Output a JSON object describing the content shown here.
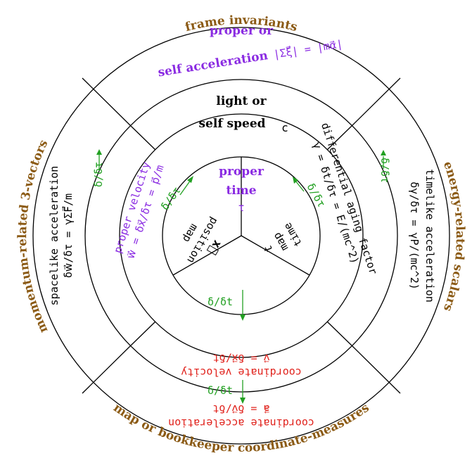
{
  "outer_labels": {
    "top": "frame invariants",
    "right": "energy-related scalars",
    "bottom": "map or bookkeeper coordinate-measures",
    "left": "momentum-related 3-vectors"
  },
  "ring3": {
    "top_line1": "proper or",
    "top_line2": "self acceleration",
    "top_formula": "|Σξ⃗| = |mα⃗|",
    "right_line1": "timelike acceleration",
    "right_line2": "δγ/δτ = γP/(mc^2)",
    "bottom_line1": "coordinate acceleration",
    "bottom_line2": "a⃗ = δv⃗/δt",
    "left_line1": "spacelike acceleration",
    "left_line2": "δw⃗/δτ = γΣF⃗/m"
  },
  "ring2": {
    "top_line1": "light or",
    "top_line2": "self speed",
    "top_c": "c",
    "right_line1": "differential aging factor",
    "right_line2": "γ = δt/δτ = E/(mc^2)",
    "bottom_line1": "coordinate velocity",
    "bottom_line2": "v⃗ = δx⃗/δt",
    "left_line1": "proper velocity",
    "left_line2": "w⃗ = δx⃗/δτ = p⃗/m"
  },
  "center": {
    "proper_line1": "proper",
    "proper_line2": "time",
    "tau": "τ",
    "position_x": "x⃗",
    "position_line1": "position",
    "position_line2": "map",
    "time_t": "t",
    "time_line1": "map",
    "time_line2": "time"
  },
  "operators": {
    "d_dtau": "δ/δτ",
    "d_dt": "δ/δt"
  },
  "colors": {
    "brown": "#8B5A14",
    "purple": "#8A2BE2",
    "green": "#22A022",
    "red": "#E0201A"
  }
}
